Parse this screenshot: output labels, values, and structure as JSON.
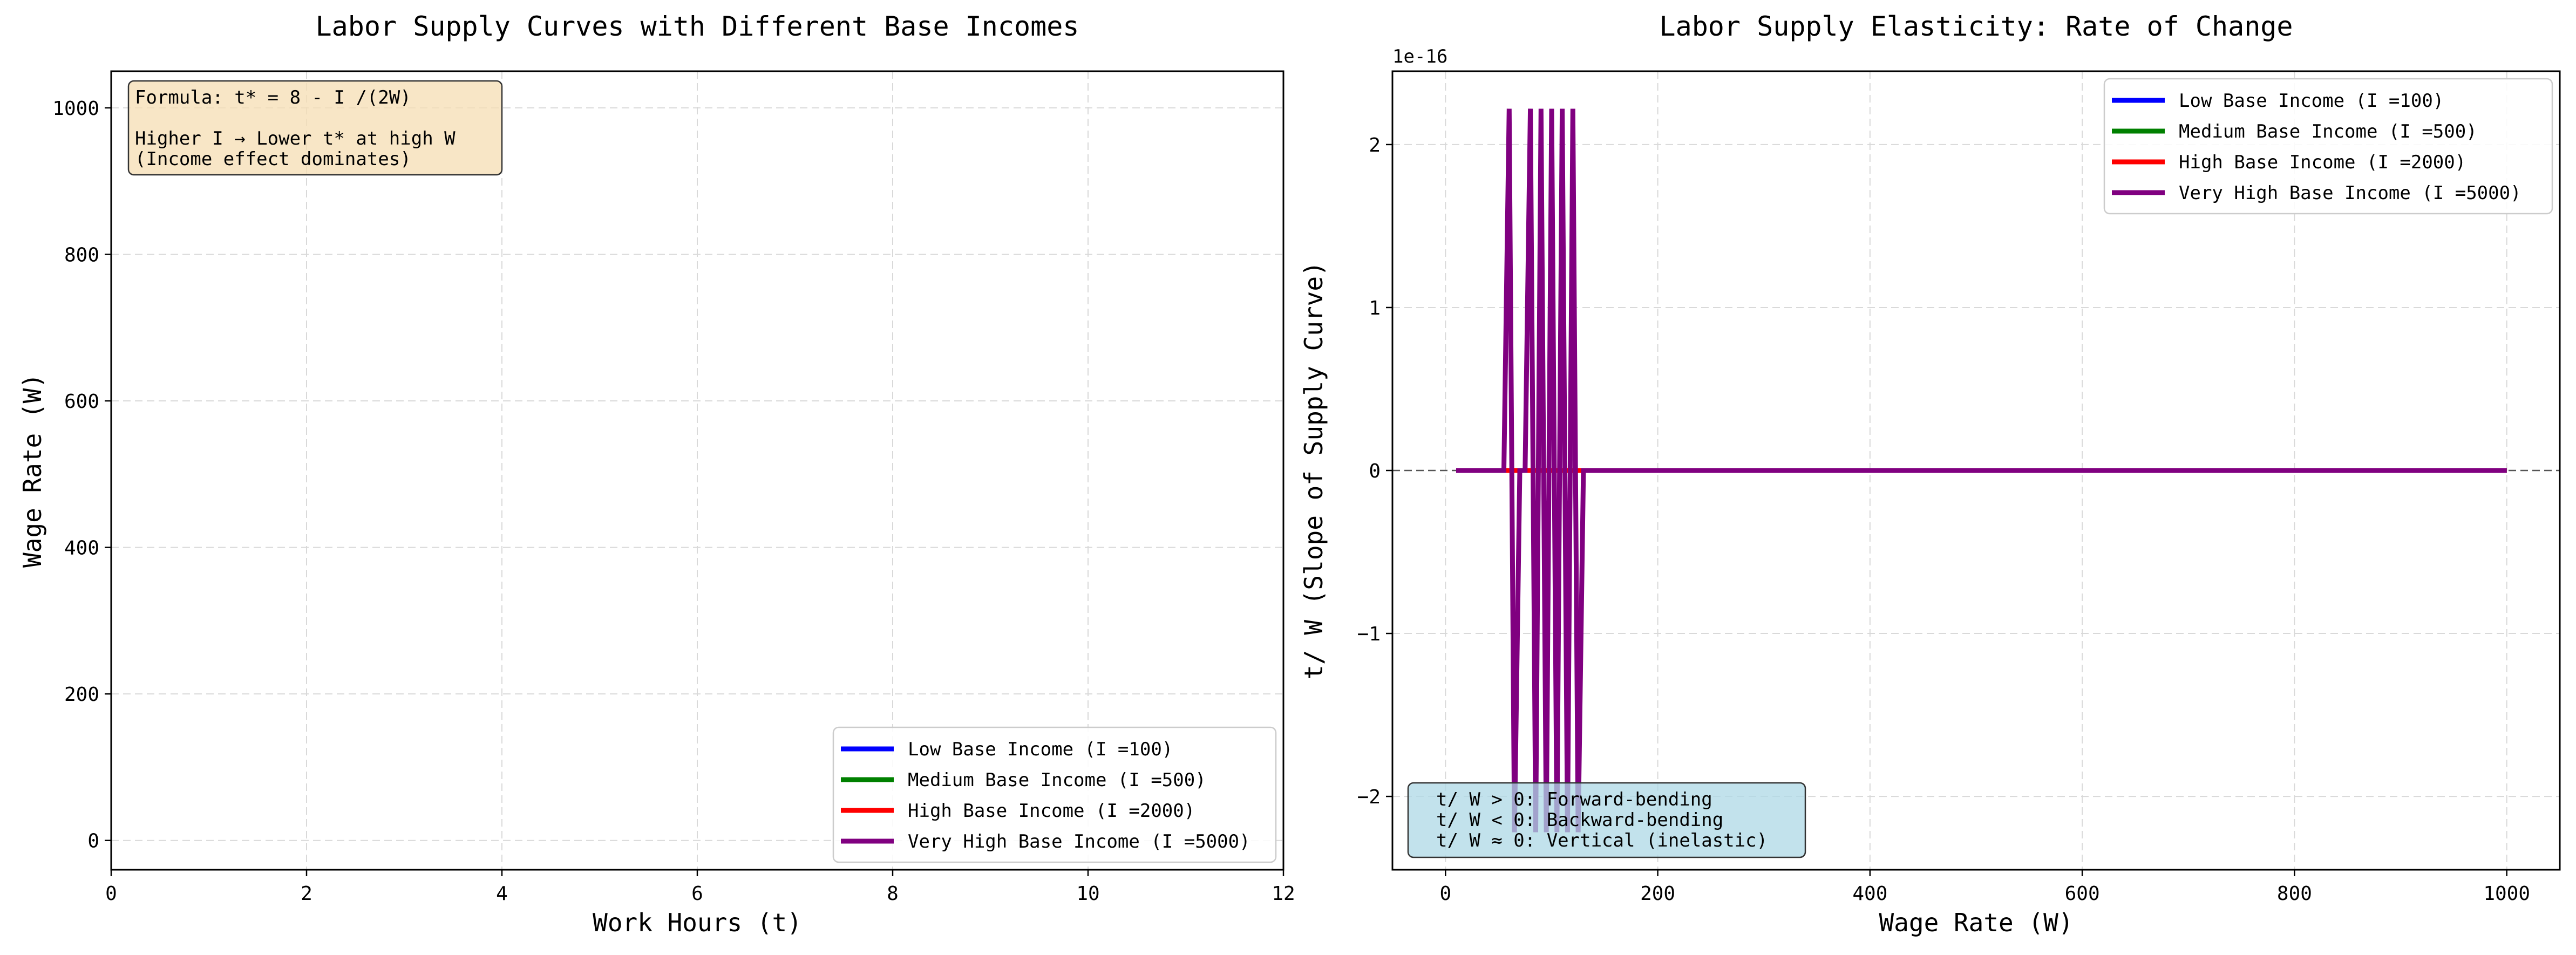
{
  "chart_data": [
    {
      "type": "line",
      "title": "Labor Supply Curves with Different Base Incomes",
      "xlabel": "Work Hours (t)",
      "ylabel": "Wage Rate (W)",
      "xlim": [
        0,
        12
      ],
      "ylim": [
        -40,
        1050
      ],
      "xticks": [
        0,
        2,
        4,
        6,
        8,
        10,
        12
      ],
      "yticks": [
        0,
        200,
        400,
        600,
        800,
        1000
      ],
      "grid": true,
      "legend_position": "lower-right",
      "series": [
        {
          "name": "Low Base Income (I  =100)",
          "color": "#0000ff",
          "x": [],
          "y": []
        },
        {
          "name": "Medium Base Income (I  =500)",
          "color": "#008000",
          "x": [],
          "y": []
        },
        {
          "name": "High Base Income (I  =2000)",
          "color": "#ff0000",
          "x": [],
          "y": []
        },
        {
          "name": "Very High Base Income (I  =5000)",
          "color": "#800080",
          "x": [],
          "y": []
        }
      ],
      "annotation": {
        "lines": [
          "Formula: t* = 8 - I  /(2W)",
          "",
          "Higher I   → Lower t* at high W",
          "(Income effect dominates)"
        ],
        "background": "#f5deb3"
      }
    },
    {
      "type": "line",
      "title": "Labor Supply Elasticity: Rate of Change",
      "xlabel": "Wage Rate (W)",
      "ylabel": "t/  W (Slope of Supply Curve)",
      "offset_text": "1e-16",
      "xlim": [
        -50,
        1050
      ],
      "ylim": [
        -2.45,
        2.45
      ],
      "xticks": [
        0,
        200,
        400,
        600,
        800,
        1000
      ],
      "yticks": [
        -2,
        -1,
        0,
        1,
        2
      ],
      "grid": true,
      "zero_line": true,
      "legend_position": "top-right",
      "series": [
        {
          "name": "Low Base Income (I  =100)",
          "color": "#0000ff",
          "x": [
            10,
            1000
          ],
          "y": [
            0,
            0
          ]
        },
        {
          "name": "Medium Base Income (I  =500)",
          "color": "#008000",
          "x": [
            10,
            1000
          ],
          "y": [
            0,
            0
          ]
        },
        {
          "name": "High Base Income (I  =2000)",
          "color": "#ff0000",
          "x": [
            10,
            1000
          ],
          "y": [
            0,
            0
          ]
        },
        {
          "name": "Very High Base Income (I  =5000)",
          "color": "#800080",
          "x": [
            10,
            55,
            60,
            65,
            70,
            75,
            80,
            85,
            90,
            95,
            100,
            105,
            110,
            115,
            120,
            125,
            130,
            135,
            1000
          ],
          "y": [
            0,
            0,
            2.22,
            -2.22,
            0,
            0,
            2.22,
            -2.22,
            2.22,
            -2.22,
            2.22,
            -2.22,
            2.22,
            -2.22,
            2.22,
            -2.22,
            0,
            0,
            0
          ]
        }
      ],
      "annotation": {
        "lines": [
          "t/  W > 0: Forward-bending",
          "t/  W < 0: Backward-bending",
          "t/  W ≈ 0: Vertical (inelastic)"
        ],
        "background": "#add8e6"
      }
    }
  ]
}
